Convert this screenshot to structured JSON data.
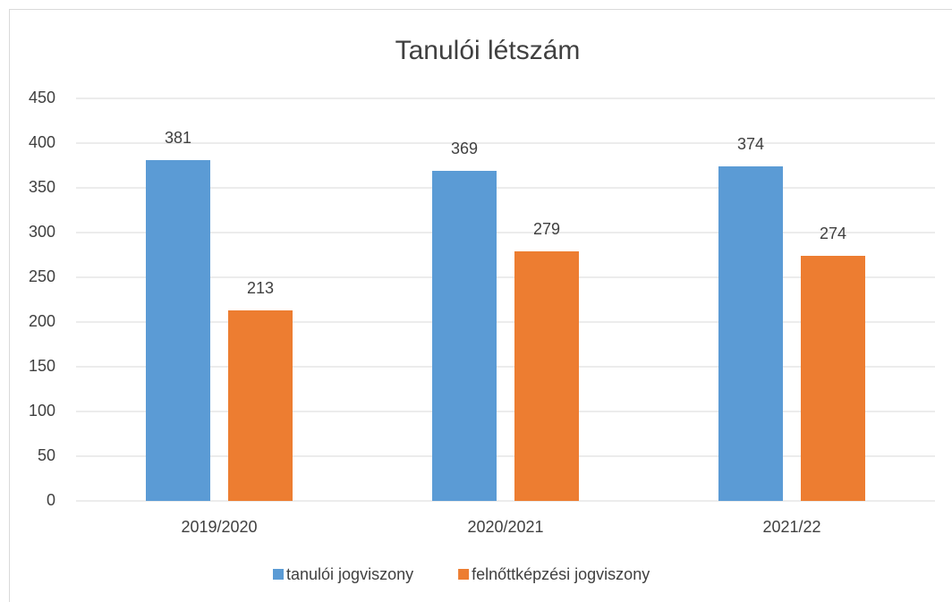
{
  "chart_data": {
    "type": "bar",
    "title": "Tanulói létszám",
    "categories": [
      "2019/2020",
      "2020/2021",
      "2021/22"
    ],
    "series": [
      {
        "name": "tanulói jogviszony",
        "color": "#5b9bd5",
        "values": [
          381,
          369,
          374
        ]
      },
      {
        "name": "felnőttképzési jogviszony",
        "color": "#ed7d31",
        "values": [
          213,
          279,
          274
        ]
      }
    ],
    "ylim": [
      0,
      450
    ],
    "yticks": [
      0,
      50,
      100,
      150,
      200,
      250,
      300,
      350,
      400,
      450
    ],
    "grid": true,
    "legend": "bottom"
  }
}
